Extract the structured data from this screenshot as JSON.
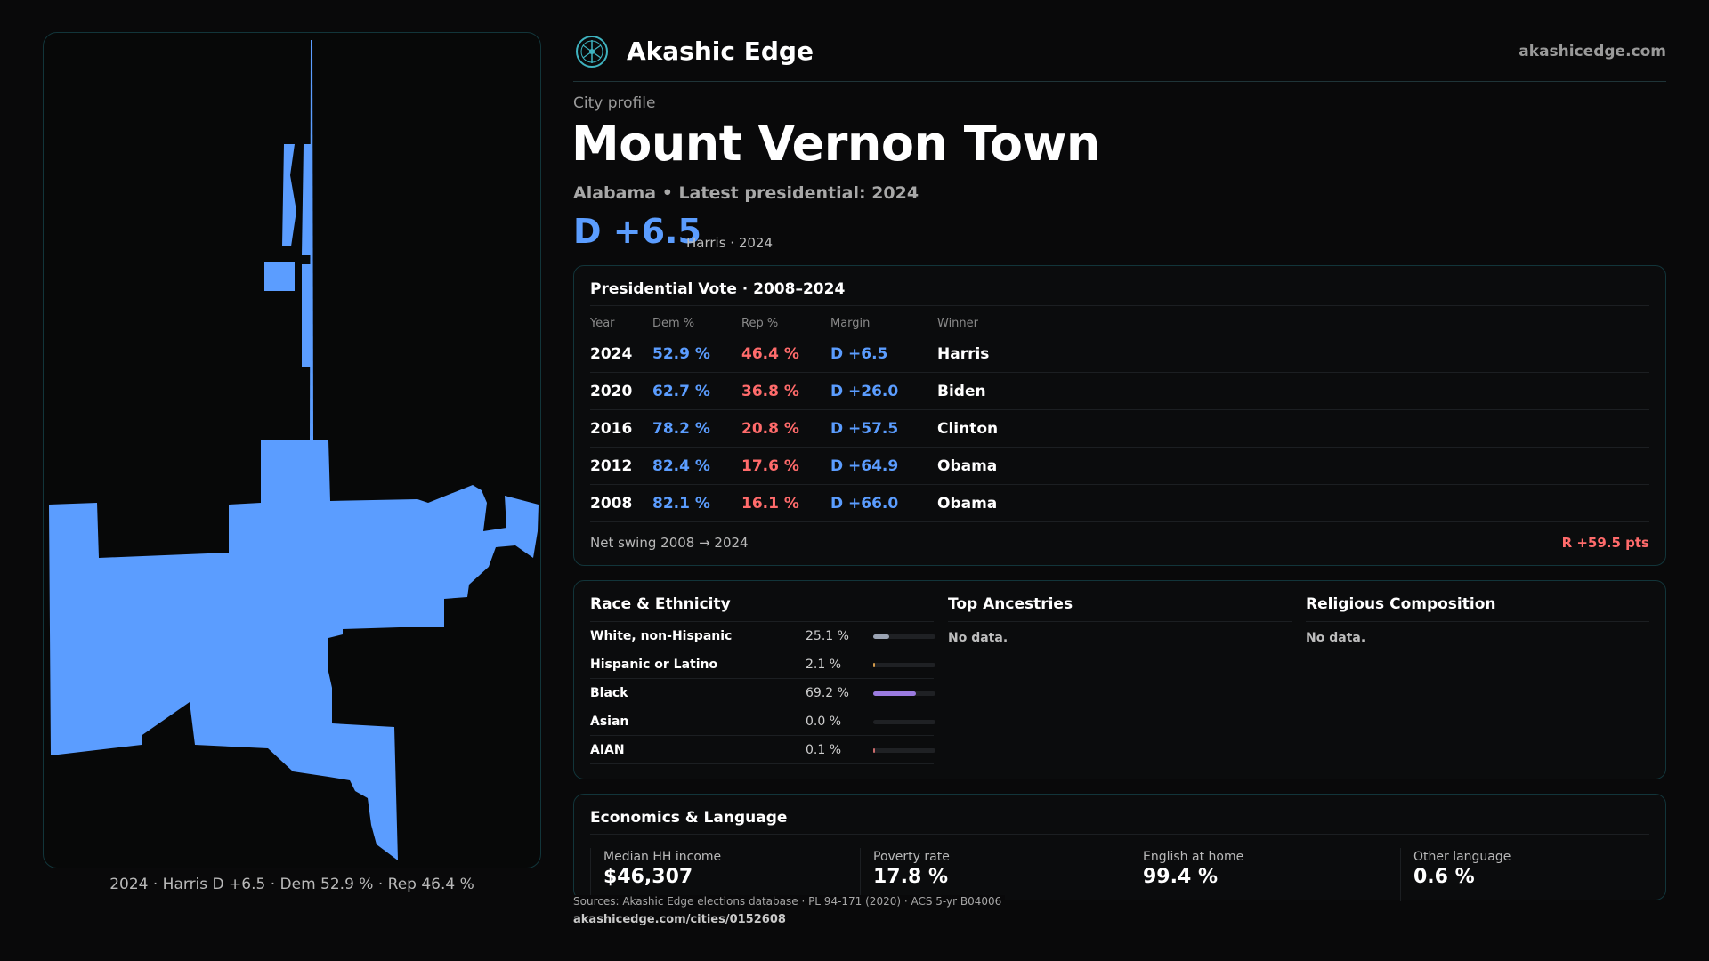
{
  "header": {
    "brand": "Akashic Edge",
    "domain": "akashicedge.com",
    "logo_icon": "tree-of-life-icon"
  },
  "profile": {
    "eyebrow": "City profile",
    "title": "Mount Vernon Town",
    "subtitle": "Alabama • Latest presidential: 2024",
    "margin": "D +6.5",
    "margin_note": "Harris · 2024"
  },
  "map": {
    "caption": "2024 · Harris D +6.5 · Dem 52.9 % · Rep 46.4 %",
    "fill_color": "#5b9dff"
  },
  "vote": {
    "title": "Presidential Vote · 2008–2024",
    "columns": [
      "Year",
      "Dem %",
      "Rep %",
      "Margin",
      "Winner"
    ],
    "rows": [
      {
        "year": "2024",
        "dem": "52.9 %",
        "rep": "46.4 %",
        "margin": "D +6.5",
        "winner": "Harris"
      },
      {
        "year": "2020",
        "dem": "62.7 %",
        "rep": "36.8 %",
        "margin": "D +26.0",
        "winner": "Biden"
      },
      {
        "year": "2016",
        "dem": "78.2 %",
        "rep": "20.8 %",
        "margin": "D +57.5",
        "winner": "Clinton"
      },
      {
        "year": "2012",
        "dem": "82.4 %",
        "rep": "17.6 %",
        "margin": "D +64.9",
        "winner": "Obama"
      },
      {
        "year": "2008",
        "dem": "82.1 %",
        "rep": "16.1 %",
        "margin": "D +66.0",
        "winner": "Obama"
      }
    ],
    "swing_label": "Net swing 2008 → 2024",
    "swing_value": "R +59.5 pts"
  },
  "race": {
    "title": "Race & Ethnicity",
    "rows": [
      {
        "label": "White, non-Hispanic",
        "pct": "25.1 %",
        "value": 25.1,
        "color": "#9aa3b2"
      },
      {
        "label": "Hispanic or Latino",
        "pct": "2.1 %",
        "value": 2.1,
        "color": "#d29a4a"
      },
      {
        "label": "Black",
        "pct": "69.2 %",
        "value": 69.2,
        "color": "#9b7be0"
      },
      {
        "label": "Asian",
        "pct": "0.0 %",
        "value": 0.0,
        "color": "#4fbf9f"
      },
      {
        "label": "AIAN",
        "pct": "0.1 %",
        "value": 0.1,
        "color": "#c96b6b"
      }
    ]
  },
  "ancestries": {
    "title": "Top Ancestries",
    "text": "No data."
  },
  "religion": {
    "title": "Religious Composition",
    "text": "No data."
  },
  "econ": {
    "title": "Economics & Language",
    "stats": [
      {
        "label": "Median HH income",
        "value": "$46,307"
      },
      {
        "label": "Poverty rate",
        "value": "17.8 %"
      },
      {
        "label": "English at home",
        "value": "99.4 %"
      },
      {
        "label": "Other language",
        "value": "0.6 %"
      }
    ]
  },
  "footer": {
    "sources": "Sources: Akashic Edge elections database · PL 94-171 (2020) · ACS 5-yr B04006",
    "url": "akashicedge.com/cities/0152608"
  },
  "colors": {
    "dem": "#5b9dff",
    "rep": "#ff6b6b",
    "accent_border": "#12353a"
  }
}
